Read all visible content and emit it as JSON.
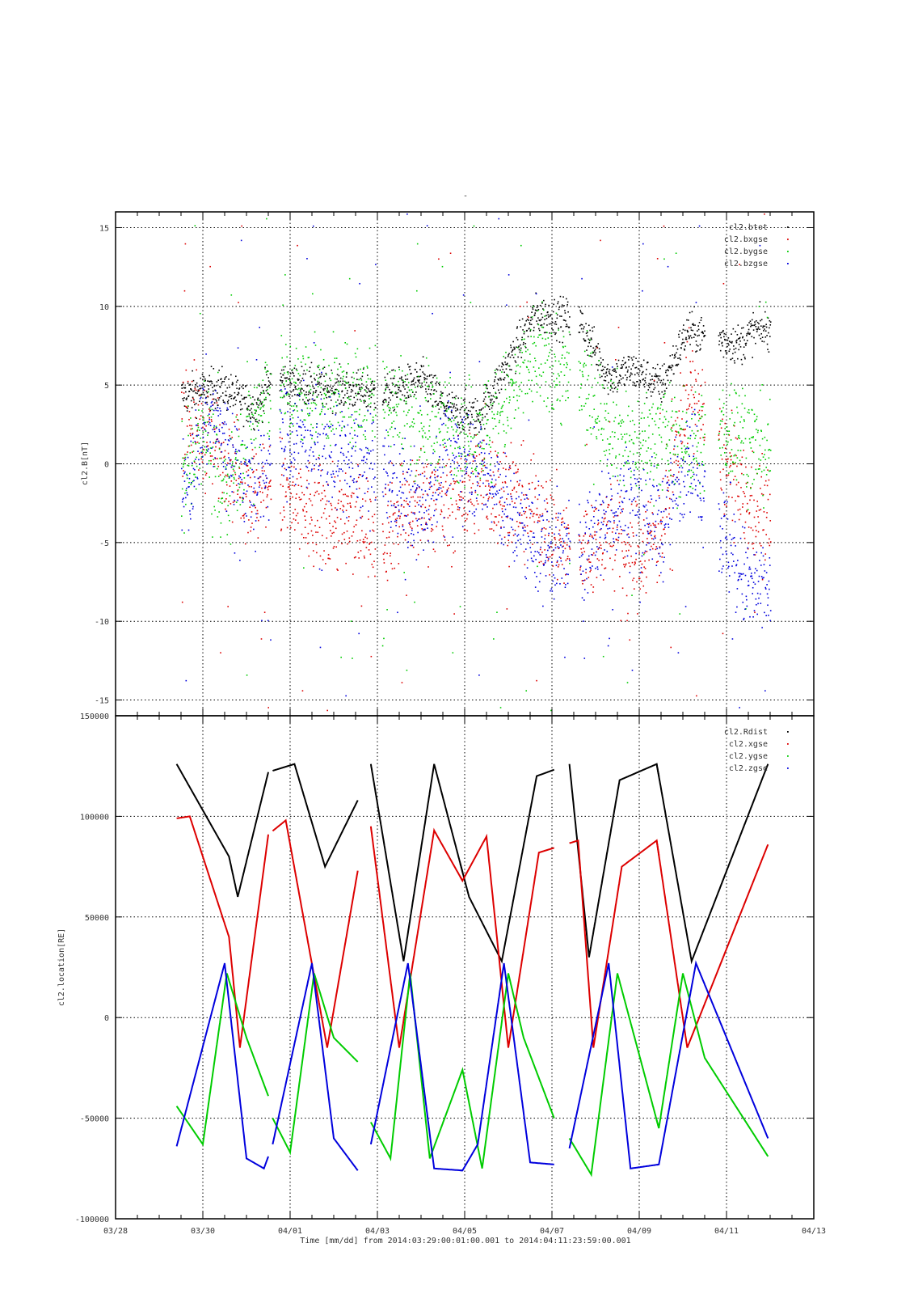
{
  "figure": {
    "title": "-",
    "footer_text": "Time [mm/dd]  from 2014:03:29:00:01:00.001  to  2014:04:11:23:59:00.001"
  },
  "chart_data": [
    {
      "type": "scatter",
      "ylabel": "cl2.B[nT]",
      "xlabel": "",
      "xlim": [
        "03/28",
        "04/13"
      ],
      "ylim": [
        -16,
        16
      ],
      "yticks": [
        -15,
        -10,
        -5,
        0,
        5,
        10,
        15
      ],
      "ytick_labels": [
        "-15",
        "-10",
        "-5",
        "0",
        "5",
        "10",
        "15"
      ],
      "grid": true,
      "legend_position": "top-right",
      "data_range_days": [
        1.5,
        15.0
      ],
      "gaps_days": [
        [
          3.55,
          3.75
        ],
        [
          5.95,
          6.1
        ],
        [
          10.4,
          10.6
        ],
        [
          13.5,
          13.8
        ]
      ],
      "series": [
        {
          "name": "cl2.btot",
          "color": "#000000",
          "x": [
            1.6,
            2.0,
            2.4,
            3.2,
            3.6,
            4.2,
            6.2,
            7.0,
            7.6,
            8.3,
            9.0,
            9.6,
            10.6,
            11.3,
            11.8,
            12.5,
            13.1,
            14.3,
            14.6
          ],
          "y": [
            4.4,
            4.7,
            4.9,
            3.5,
            5.6,
            5.0,
            4.5,
            5.4,
            3.5,
            3.0,
            6.5,
            9.5,
            9.2,
            5.5,
            6.0,
            5.0,
            8.5,
            7.6,
            8.5
          ]
        },
        {
          "name": "cl2.bxgse",
          "color": "#dd0000",
          "x": [
            1.6,
            2.0,
            2.4,
            3.2,
            3.6,
            4.2,
            6.2,
            7.0,
            7.6,
            8.3,
            9.0,
            9.6,
            10.6,
            11.3,
            11.8,
            12.5,
            13.1,
            14.3,
            14.6
          ],
          "y": [
            3.5,
            2.0,
            1.0,
            -2.0,
            -1.0,
            -3.0,
            -4.0,
            -2.0,
            -2.5,
            -1.0,
            -2.0,
            -3.0,
            -6.0,
            -4.0,
            -6.0,
            -4.0,
            5.0,
            -2.0,
            -3.0
          ]
        },
        {
          "name": "cl2.bygse",
          "color": "#00cc00",
          "x": [
            1.6,
            2.0,
            2.4,
            3.2,
            3.6,
            4.2,
            6.2,
            7.0,
            7.6,
            8.3,
            9.0,
            9.6,
            10.6,
            11.3,
            11.8,
            12.5,
            13.1,
            14.3,
            14.6
          ],
          "y": [
            -1.0,
            3.0,
            -2.0,
            3.0,
            5.0,
            4.5,
            4.0,
            3.0,
            2.5,
            2.0,
            4.0,
            7.0,
            5.0,
            3.0,
            1.0,
            2.0,
            1.0,
            2.5,
            1.0
          ]
        },
        {
          "name": "cl2.bzgse",
          "color": "#0000dd",
          "x": [
            1.6,
            2.0,
            2.4,
            3.2,
            3.6,
            4.2,
            6.2,
            7.0,
            7.6,
            8.3,
            9.0,
            9.6,
            10.6,
            11.3,
            11.8,
            12.5,
            13.1,
            14.3,
            14.6
          ],
          "y": [
            -2.0,
            3.0,
            2.0,
            -2.0,
            1.0,
            2.0,
            -1.0,
            -3.0,
            1.0,
            0.0,
            -3.0,
            -5.0,
            -6.0,
            -3.0,
            -2.0,
            -4.0,
            1.0,
            -7.0,
            -8.0
          ]
        }
      ]
    },
    {
      "type": "line",
      "ylabel": "cl2.location[RE]",
      "xlabel": "",
      "xlim": [
        "03/28",
        "04/13"
      ],
      "ylim": [
        -100000,
        150000
      ],
      "yticks": [
        -100000,
        -50000,
        0,
        50000,
        100000,
        150000
      ],
      "ytick_labels": [
        "-100000",
        "-50000",
        "0",
        "50000",
        "100000",
        "150000"
      ],
      "xticks_days": [
        0,
        2,
        4,
        6,
        8,
        10,
        12,
        14,
        16
      ],
      "xtick_labels": [
        "03/28",
        "03/30",
        "04/01",
        "04/03",
        "04/05",
        "04/07",
        "04/09",
        "04/11",
        "04/13"
      ],
      "grid": true,
      "legend_position": "top-right",
      "orbit_segments_days": [
        [
          1.4,
          3.5
        ],
        [
          3.6,
          5.55
        ],
        [
          5.85,
          7.95
        ],
        [
          7.9,
          10.05
        ],
        [
          10.4,
          12.45
        ],
        [
          12.4,
          14.95
        ]
      ],
      "orbit_period_days": 2.28,
      "series": [
        {
          "name": "cl2.Rdist",
          "color": "#000000",
          "x": [
            1.4,
            2.6,
            2.8,
            3.5,
            4.1,
            4.8,
            5.55,
            5.85,
            6.6,
            7.3,
            8.1,
            8.85,
            9.65,
            10.4,
            10.85,
            11.55,
            12.4,
            13.2,
            14.95
          ],
          "y": [
            126000,
            80000,
            60000,
            122000,
            126000,
            75000,
            108000,
            126000,
            28000,
            126000,
            60000,
            28000,
            120000,
            126000,
            30000,
            118000,
            126000,
            28000,
            126000
          ]
        },
        {
          "name": "cl2.xgse",
          "color": "#dd0000",
          "x": [
            1.4,
            1.7,
            2.6,
            2.85,
            3.5,
            3.9,
            4.85,
            5.55,
            5.85,
            6.5,
            7.3,
            7.95,
            8.5,
            9.0,
            9.7,
            10.6,
            10.95,
            11.6,
            12.4,
            13.1,
            14.95
          ],
          "y": [
            99000,
            100000,
            40000,
            -15000,
            91000,
            98000,
            -15000,
            73000,
            95000,
            -15000,
            93000,
            68000,
            90000,
            -15000,
            82000,
            88000,
            -15000,
            75000,
            88000,
            -15000,
            86000
          ]
        },
        {
          "name": "cl2.ygse",
          "color": "#00cc00",
          "x": [
            1.4,
            2.0,
            2.55,
            3.0,
            3.5,
            3.6,
            4.0,
            4.55,
            5.0,
            5.55,
            5.85,
            6.3,
            6.75,
            7.2,
            7.95,
            8.4,
            9.0,
            9.35,
            10.05,
            10.4,
            10.9,
            11.5,
            12.45,
            13.0,
            13.5,
            14.95
          ],
          "y": [
            -44000,
            -63000,
            22000,
            -10000,
            -39000,
            -50000,
            -67000,
            22000,
            -10000,
            -22000,
            -52000,
            -70000,
            22000,
            -70000,
            -26000,
            -75000,
            22000,
            -10000,
            -50000,
            -60000,
            -78000,
            22000,
            -55000,
            22000,
            -20000,
            -69000
          ]
        },
        {
          "name": "cl2.zgse",
          "color": "#0000dd",
          "x": [
            1.4,
            2.5,
            3.0,
            3.4,
            3.6,
            4.5,
            5.0,
            5.55,
            5.85,
            6.7,
            7.3,
            7.95,
            8.3,
            8.9,
            9.5,
            10.05,
            10.4,
            11.3,
            11.8,
            12.45,
            13.3,
            14.95
          ],
          "y": [
            -64000,
            27000,
            -70000,
            -75000,
            -63000,
            27000,
            -60000,
            -76000,
            -63000,
            27000,
            -75000,
            -76000,
            -63000,
            27000,
            -72000,
            -73000,
            -65000,
            27000,
            -75000,
            -73000,
            27000,
            -60000
          ]
        }
      ]
    }
  ]
}
